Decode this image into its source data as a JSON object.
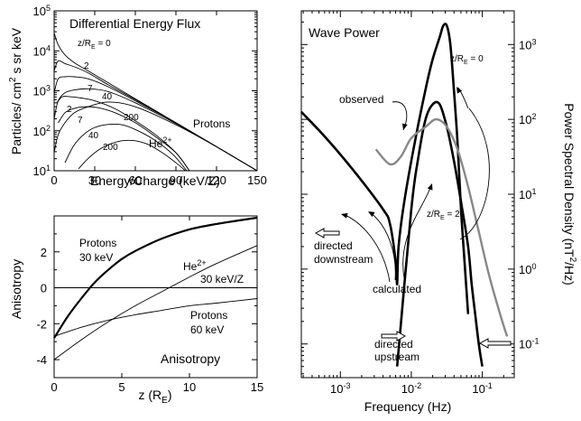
{
  "chart_data": [
    {
      "type": "line",
      "title": "Differential Energy Flux",
      "xlabel": "Energy/Charge (keV/Z)",
      "ylabel": "Particles/ cm² s sr keV",
      "xlim": [
        0,
        150
      ],
      "ylim_log10": [
        1,
        5
      ],
      "x_ticks": [
        "0",
        "30",
        "60",
        "90",
        "120",
        "150"
      ],
      "y_ticks": [
        {
          "base": "10",
          "exp": "1"
        },
        {
          "base": "10",
          "exp": "2"
        },
        {
          "base": "10",
          "exp": "3"
        },
        {
          "base": "10",
          "exp": "4"
        },
        {
          "base": "10",
          "exp": "5"
        }
      ],
      "annotations": {
        "z0": "z/R",
        "z0_sub": "E",
        "z0_tail": " = 0",
        "protons": "Protons",
        "he": "He",
        "he_sup": "2+",
        "p2": "2",
        "p7": "7",
        "p40": "40",
        "h2": "2",
        "h7": "7",
        "h40": "40",
        "h200": "200",
        "p200": "200"
      },
      "series": [
        {
          "name": "Protons z/RE=0",
          "x": [
            0,
            3,
            8,
            15,
            25,
            40,
            60,
            90,
            120,
            150
          ],
          "log10y": [
            4.45,
            4.15,
            3.9,
            3.7,
            3.5,
            3.2,
            2.8,
            2.2,
            1.6,
            1.0
          ]
        },
        {
          "name": "Protons z/RE=2",
          "x": [
            0,
            3,
            8,
            15,
            25,
            40,
            60,
            90,
            120,
            150
          ],
          "log10y": [
            3.5,
            3.75,
            3.68,
            3.6,
            3.45,
            3.15,
            2.78,
            2.2,
            1.6,
            1.0
          ]
        },
        {
          "name": "Protons z/RE=7",
          "x": [
            0,
            3,
            8,
            15,
            25,
            40,
            60,
            90,
            120,
            150
          ],
          "log10y": [
            2.95,
            3.3,
            3.35,
            3.35,
            3.3,
            3.1,
            2.75,
            2.2,
            1.6,
            1.0
          ]
        },
        {
          "name": "Protons z/RE=40",
          "x": [
            0,
            3,
            8,
            15,
            25,
            40,
            60,
            90,
            120,
            150
          ],
          "log10y": [
            2.3,
            2.75,
            2.95,
            3.02,
            3.05,
            2.98,
            2.7,
            2.18,
            1.6,
            1.0
          ]
        },
        {
          "name": "Protons z/RE=200",
          "x": [
            0,
            3,
            8,
            15,
            25,
            40,
            60,
            90,
            120,
            150
          ],
          "log10y": [
            1.45,
            1.9,
            2.2,
            2.45,
            2.6,
            2.72,
            2.6,
            2.15,
            1.6,
            1.0
          ]
        },
        {
          "name": "He2+ z/RE=2",
          "x": [
            2,
            6,
            12,
            20,
            30,
            45,
            60,
            75,
            90,
            100
          ],
          "log10y": [
            2.7,
            2.85,
            2.85,
            2.82,
            2.75,
            2.55,
            2.25,
            1.9,
            1.45,
            1.0
          ]
        },
        {
          "name": "He2+ z/RE=7",
          "x": [
            3,
            8,
            14,
            22,
            32,
            45,
            60,
            75,
            90,
            100
          ],
          "log10y": [
            2.2,
            2.45,
            2.55,
            2.6,
            2.58,
            2.45,
            2.2,
            1.85,
            1.45,
            1.0
          ]
        },
        {
          "name": "He2+ z/RE=40",
          "x": [
            8,
            14,
            20,
            28,
            38,
            50,
            62,
            75,
            88,
            98
          ],
          "log10y": [
            1.2,
            1.6,
            1.85,
            2.05,
            2.15,
            2.15,
            2.0,
            1.75,
            1.4,
            1.0
          ]
        },
        {
          "name": "He2+ z/RE=200",
          "x": [
            18,
            25,
            32,
            40,
            50,
            60,
            70,
            80,
            90,
            97
          ],
          "log10y": [
            1.05,
            1.3,
            1.5,
            1.65,
            1.75,
            1.75,
            1.65,
            1.45,
            1.2,
            1.0
          ]
        }
      ]
    },
    {
      "type": "line",
      "title": "Anisotropy",
      "xlabel": "z (R",
      "xlabel_sub": "E",
      "xlabel_tail": ")",
      "ylabel": "Anisotropy",
      "xlim": [
        0,
        15
      ],
      "ylim": [
        -5,
        4
      ],
      "x_ticks": [
        "0",
        "5",
        "10",
        "15"
      ],
      "y_ticks": [
        "-4",
        "-2",
        "0",
        "2"
      ],
      "annotations": {
        "protons30_a": "Protons",
        "protons30_b": "30 keV",
        "he": "He",
        "he_sup": "2+",
        "he_energy": "30 keV/Z",
        "protons60_a": "Protons",
        "protons60_b": "60 keV"
      },
      "series": [
        {
          "name": "Protons 30 keV",
          "x": [
            0,
            1,
            2,
            3,
            4,
            5,
            6,
            8,
            10,
            12,
            15
          ],
          "y": [
            -2.8,
            -1.6,
            -0.6,
            0.3,
            1.0,
            1.6,
            2.05,
            2.75,
            3.25,
            3.55,
            3.9
          ]
        },
        {
          "name": "He2+ 30 keV/Z",
          "x": [
            0,
            2,
            4,
            6,
            8,
            10,
            12,
            15
          ],
          "y": [
            -4.0,
            -2.9,
            -1.9,
            -1.0,
            -0.2,
            0.6,
            1.35,
            2.35
          ]
        },
        {
          "name": "Protons 60 keV",
          "x": [
            0,
            2,
            4,
            6,
            8,
            10,
            12,
            15
          ],
          "y": [
            -2.7,
            -2.2,
            -1.8,
            -1.5,
            -1.25,
            -1.0,
            -0.85,
            -0.6
          ]
        }
      ]
    },
    {
      "type": "line",
      "title": "Wave Power",
      "xlabel": "Frequency (Hz)",
      "ylabel": "Power Spectral Density (nT",
      "ylabel_sup": "2",
      "ylabel_tail": "/Hz)",
      "xlim_log10": [
        -3.55,
        -0.55
      ],
      "ylim_log10": [
        -1.45,
        3.45
      ],
      "x_ticks": [
        {
          "base": "10",
          "exp": "-3"
        },
        {
          "base": "10",
          "exp": "-2"
        },
        {
          "base": "10",
          "exp": "-1"
        }
      ],
      "y_ticks": [
        {
          "base": "10",
          "exp": "-1"
        },
        {
          "base": "10",
          "exp": "0"
        },
        {
          "base": "10",
          "exp": "1"
        },
        {
          "base": "10",
          "exp": "2"
        },
        {
          "base": "10",
          "exp": "3"
        }
      ],
      "annotations": {
        "z0": "z/R",
        "z0_sub": "E",
        "z0_tail": " = 0",
        "z2": "z/R",
        "z2_sub": "E",
        "z2_tail": " = 2",
        "observed": "observed",
        "calculated": "calculated",
        "downstream_a": "directed",
        "downstream_b": "downstream",
        "upstream_a": "directed",
        "upstream_b": "upstream"
      },
      "series": [
        {
          "name": "calculated z/RE=0",
          "log10x": [
            -3.55,
            -3.2,
            -2.8,
            -2.4,
            -2.3,
            -2.22,
            -2.2,
            -2.18,
            -2.1,
            -1.95,
            -1.8,
            -1.7,
            -1.6,
            -1.55,
            -1.5,
            -1.45,
            -1.4,
            -1.35,
            -1.3,
            -1.25,
            -1.2
          ],
          "log10y": [
            2.1,
            1.75,
            1.3,
            0.8,
            0.6,
            0.1,
            -0.2,
            0.3,
            0.9,
            1.7,
            2.4,
            2.8,
            3.1,
            3.25,
            3.25,
            3.0,
            2.4,
            1.7,
            0.8,
            0.1,
            -0.6
          ]
        },
        {
          "name": "calculated z/RE=2",
          "log10x": [
            -2.2,
            -2.0,
            -1.9,
            -1.8,
            -1.7,
            -1.6,
            -1.5,
            -1.4,
            -1.3,
            -1.2,
            -1.15,
            -1.1,
            -1.05,
            -1.0
          ],
          "log10y": [
            -1.3,
            0.8,
            1.5,
            2.0,
            2.2,
            2.2,
            1.9,
            1.45,
            0.9,
            0.3,
            -0.2,
            -0.6,
            -1.0,
            -1.3
          ]
        },
        {
          "name": "observed",
          "log10x": [
            -2.5,
            -2.3,
            -2.15,
            -2.0,
            -1.8,
            -1.65,
            -1.5,
            -1.35,
            -1.2,
            -1.05,
            -0.9,
            -0.75,
            -0.65
          ],
          "log10y": [
            1.6,
            1.4,
            1.5,
            1.75,
            1.9,
            2.0,
            1.9,
            1.6,
            1.1,
            0.5,
            -0.1,
            -0.6,
            -0.9
          ]
        }
      ]
    }
  ]
}
